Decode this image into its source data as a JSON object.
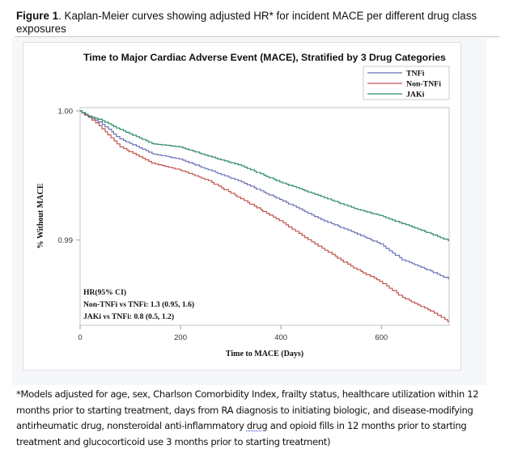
{
  "caption": {
    "label": "Figure 1",
    "text": ". Kaplan-Meier curves showing adjusted HR* for incident MACE per different drug class exposures"
  },
  "chart_data": {
    "type": "line",
    "subtype": "kaplan-meier-step",
    "title": "Time to Major Cardiac Adverse Event (MACE), Stratified by 3 Drug Categories",
    "xlabel": "Time to MACE (Days)",
    "ylabel": "% Without MACE",
    "xlim": [
      0,
      735
    ],
    "ylim": [
      0.9834,
      1.0
    ],
    "xticks": [
      0,
      200,
      400,
      600
    ],
    "xtick_labels": [
      "0",
      "200",
      "400",
      "600"
    ],
    "yticks": [
      0.99,
      1.0
    ],
    "ytick_labels": [
      "0.99",
      "1.00"
    ],
    "grid": false,
    "legend_position": "top-right",
    "series": [
      {
        "name": "TNFi",
        "color": "#6b74b8",
        "x": [
          0,
          20,
          40,
          82,
          146,
          200,
          258,
          323,
          400,
          484,
          548,
          600,
          645,
          700,
          735
        ],
        "y": [
          1.0,
          0.99955,
          0.99915,
          0.99783,
          0.99669,
          0.99627,
          0.99544,
          0.9945,
          0.99314,
          0.99158,
          0.99056,
          0.98971,
          0.98846,
          0.9876,
          0.987
        ]
      },
      {
        "name": "Non-TNFi",
        "color": "#c0574f",
        "x": [
          0,
          20,
          40,
          82,
          146,
          200,
          258,
          323,
          400,
          484,
          548,
          600,
          645,
          700,
          735
        ],
        "y": [
          1.0,
          0.9995,
          0.99885,
          0.99721,
          0.99596,
          0.99544,
          0.9946,
          0.9932,
          0.9915,
          0.98937,
          0.98783,
          0.9868,
          0.98556,
          0.9845,
          0.98369
        ]
      },
      {
        "name": "JAKi",
        "color": "#2e8a6e",
        "x": [
          0,
          20,
          40,
          82,
          146,
          200,
          258,
          323,
          400,
          484,
          548,
          600,
          645,
          700,
          735
        ],
        "y": [
          1.0,
          0.9996,
          0.99935,
          0.99856,
          0.99746,
          0.99721,
          0.9965,
          0.99575,
          0.9945,
          0.99337,
          0.99244,
          0.9919,
          0.99127,
          0.9905,
          0.98996
        ]
      }
    ],
    "annotation": {
      "heading": "HR(95% CI)",
      "lines": [
        "Non-TNFi vs TNFi: 1.3 (0.95, 1.6)",
        "JAKi vs TNFi: 0.8 (0.5, 1.2)"
      ]
    }
  },
  "footnote": {
    "before": "*Models adjusted for age, sex, Charlson Comorbidity Index, frailty status, healthcare utilization within 12 months prior to starting treatment, days from RA diagnosis to initiating biologic, and disease-modifying antirheumatic drug, nonsteroidal anti-inflammatory ",
    "flagged_word": "drug",
    "after": " and opioid fills in 12 months prior to starting treatment and glucocorticoid use 3 months prior to starting treatment)"
  }
}
